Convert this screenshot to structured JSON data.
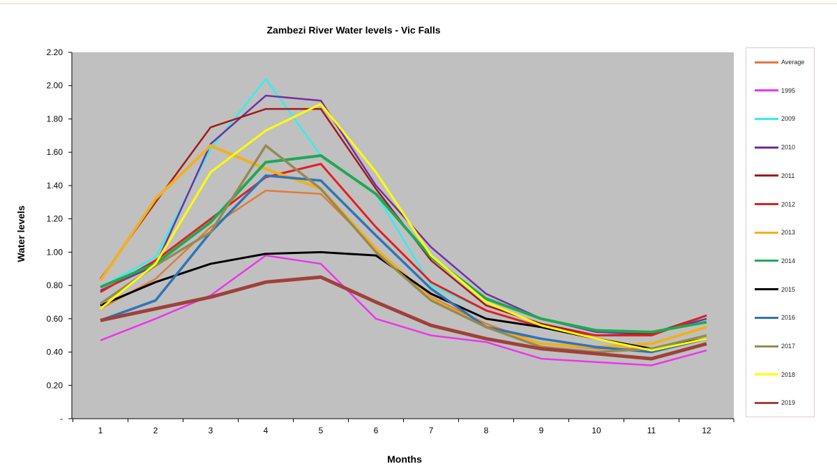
{
  "chart_data": {
    "type": "line",
    "title": "Zambezi River Water levels - Vic Falls",
    "xlabel": "Months",
    "ylabel": "Water levels",
    "x": [
      1,
      2,
      3,
      4,
      5,
      6,
      7,
      8,
      9,
      10,
      11,
      12
    ],
    "ylim": [
      0,
      2.2
    ],
    "yticks": [
      "-",
      "0.20",
      "0.40",
      "0.60",
      "0.80",
      "1.00",
      "1.20",
      "1.40",
      "1.60",
      "1.80",
      "2.00",
      "2.20"
    ],
    "grid": false,
    "plot_background": "#c0c0c0",
    "legend_position": "right",
    "series": [
      {
        "name": "Average",
        "color": "#e07b39",
        "values": [
          0.66,
          0.84,
          1.15,
          1.37,
          1.35,
          1.02,
          0.73,
          0.57,
          0.45,
          0.42,
          0.42,
          0.5
        ]
      },
      {
        "name": "1995",
        "color": "#ee33ee",
        "values": [
          0.47,
          0.6,
          0.74,
          0.98,
          0.93,
          0.6,
          0.5,
          0.46,
          0.36,
          0.34,
          0.32,
          0.41
        ]
      },
      {
        "name": "2009",
        "color": "#33eeee",
        "values": [
          0.79,
          0.97,
          1.62,
          2.04,
          1.58,
          1.35,
          0.8,
          0.65,
          0.55,
          0.5,
          0.52,
          0.6
        ]
      },
      {
        "name": "2010",
        "color": "#7030a0",
        "values": [
          0.77,
          0.92,
          1.65,
          1.94,
          1.91,
          1.4,
          1.03,
          0.75,
          0.6,
          0.52,
          0.51,
          0.6
        ]
      },
      {
        "name": "2011",
        "color": "#a01a1a",
        "values": [
          0.84,
          1.3,
          1.75,
          1.86,
          1.86,
          1.38,
          0.95,
          0.68,
          0.57,
          0.5,
          0.51,
          0.62
        ]
      },
      {
        "name": "2012",
        "color": "#e02020",
        "values": [
          0.76,
          0.95,
          1.2,
          1.45,
          1.53,
          1.15,
          0.82,
          0.65,
          0.55,
          0.5,
          0.5,
          0.62
        ]
      },
      {
        "name": "2013",
        "color": "#f0b020",
        "values": [
          0.83,
          1.32,
          1.64,
          1.5,
          1.38,
          1.02,
          0.72,
          0.55,
          0.45,
          0.43,
          0.45,
          0.55
        ]
      },
      {
        "name": "2014",
        "color": "#1fa855",
        "values": [
          0.79,
          0.93,
          1.18,
          1.54,
          1.58,
          1.35,
          0.97,
          0.72,
          0.6,
          0.53,
          0.52,
          0.58
        ]
      },
      {
        "name": "2015",
        "color": "#000000",
        "values": [
          0.68,
          0.82,
          0.93,
          0.99,
          1.0,
          0.98,
          0.75,
          0.6,
          0.55,
          0.48,
          0.42,
          0.48
        ]
      },
      {
        "name": "2016",
        "color": "#2e75b6",
        "values": [
          0.59,
          0.71,
          1.12,
          1.46,
          1.43,
          1.1,
          0.78,
          0.55,
          0.48,
          0.43,
          0.4,
          0.48
        ]
      },
      {
        "name": "2017",
        "color": "#948a54",
        "values": [
          0.69,
          0.92,
          1.12,
          1.64,
          1.38,
          1.0,
          0.71,
          0.55,
          0.43,
          0.4,
          0.42,
          0.5
        ]
      },
      {
        "name": "2018",
        "color": "#ffff00",
        "values": [
          0.66,
          0.93,
          1.48,
          1.73,
          1.89,
          1.48,
          0.98,
          0.7,
          0.56,
          0.48,
          0.41,
          0.48
        ]
      },
      {
        "name": "2019",
        "color": "#a0403a",
        "values": [
          0.59,
          0.66,
          0.73,
          0.82,
          0.85,
          0.7,
          0.56,
          0.48,
          0.42,
          0.39,
          0.36,
          0.45
        ]
      }
    ]
  }
}
